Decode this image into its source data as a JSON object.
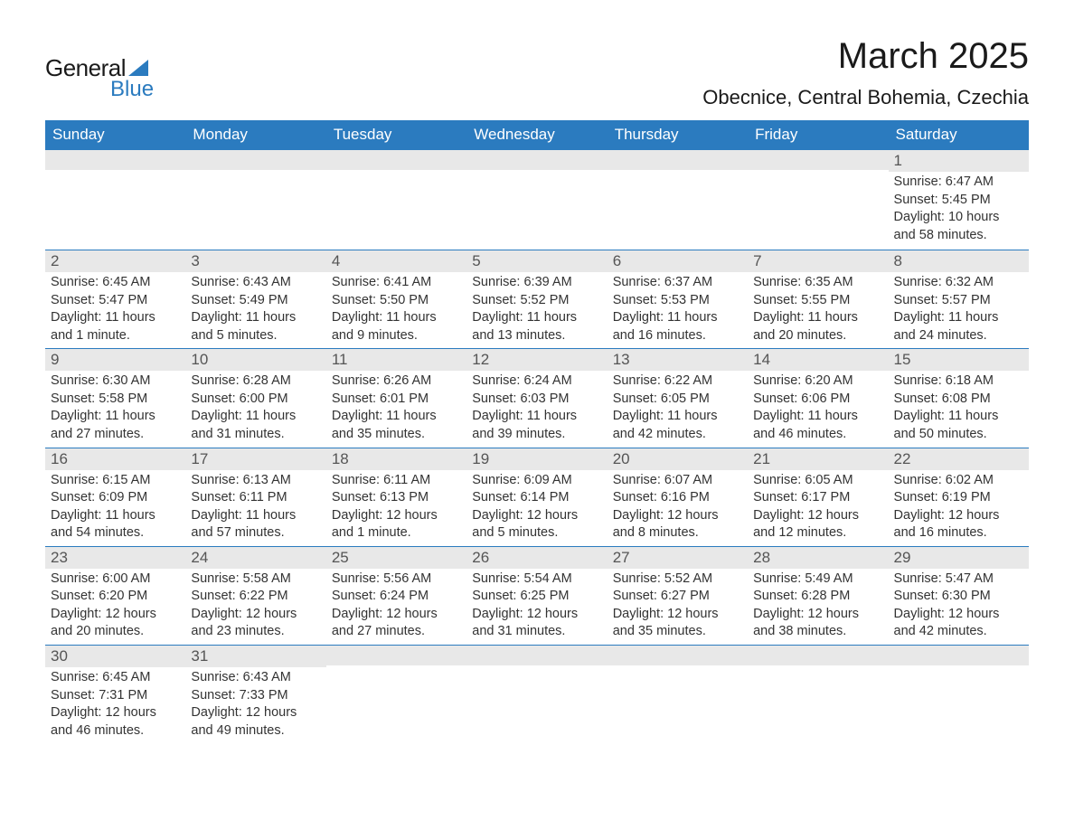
{
  "logo": {
    "text1": "General",
    "text2": "Blue"
  },
  "title": {
    "month": "March 2025",
    "location": "Obecnice, Central Bohemia, Czechia"
  },
  "colors": {
    "header_bg": "#2b7bbf",
    "header_text": "#ffffff",
    "daynum_bg": "#e8e8e8",
    "daynum_text": "#555555",
    "body_text": "#333333",
    "row_border": "#2b7bbf",
    "page_bg": "#ffffff",
    "logo_accent": "#2b7bbf"
  },
  "weekdays": [
    "Sunday",
    "Monday",
    "Tuesday",
    "Wednesday",
    "Thursday",
    "Friday",
    "Saturday"
  ],
  "weeks": [
    [
      {
        "blank": true
      },
      {
        "blank": true
      },
      {
        "blank": true
      },
      {
        "blank": true
      },
      {
        "blank": true
      },
      {
        "blank": true
      },
      {
        "day": "1",
        "sunrise": "Sunrise: 6:47 AM",
        "sunset": "Sunset: 5:45 PM",
        "daylight1": "Daylight: 10 hours",
        "daylight2": "and 58 minutes."
      }
    ],
    [
      {
        "day": "2",
        "sunrise": "Sunrise: 6:45 AM",
        "sunset": "Sunset: 5:47 PM",
        "daylight1": "Daylight: 11 hours",
        "daylight2": "and 1 minute."
      },
      {
        "day": "3",
        "sunrise": "Sunrise: 6:43 AM",
        "sunset": "Sunset: 5:49 PM",
        "daylight1": "Daylight: 11 hours",
        "daylight2": "and 5 minutes."
      },
      {
        "day": "4",
        "sunrise": "Sunrise: 6:41 AM",
        "sunset": "Sunset: 5:50 PM",
        "daylight1": "Daylight: 11 hours",
        "daylight2": "and 9 minutes."
      },
      {
        "day": "5",
        "sunrise": "Sunrise: 6:39 AM",
        "sunset": "Sunset: 5:52 PM",
        "daylight1": "Daylight: 11 hours",
        "daylight2": "and 13 minutes."
      },
      {
        "day": "6",
        "sunrise": "Sunrise: 6:37 AM",
        "sunset": "Sunset: 5:53 PM",
        "daylight1": "Daylight: 11 hours",
        "daylight2": "and 16 minutes."
      },
      {
        "day": "7",
        "sunrise": "Sunrise: 6:35 AM",
        "sunset": "Sunset: 5:55 PM",
        "daylight1": "Daylight: 11 hours",
        "daylight2": "and 20 minutes."
      },
      {
        "day": "8",
        "sunrise": "Sunrise: 6:32 AM",
        "sunset": "Sunset: 5:57 PM",
        "daylight1": "Daylight: 11 hours",
        "daylight2": "and 24 minutes."
      }
    ],
    [
      {
        "day": "9",
        "sunrise": "Sunrise: 6:30 AM",
        "sunset": "Sunset: 5:58 PM",
        "daylight1": "Daylight: 11 hours",
        "daylight2": "and 27 minutes."
      },
      {
        "day": "10",
        "sunrise": "Sunrise: 6:28 AM",
        "sunset": "Sunset: 6:00 PM",
        "daylight1": "Daylight: 11 hours",
        "daylight2": "and 31 minutes."
      },
      {
        "day": "11",
        "sunrise": "Sunrise: 6:26 AM",
        "sunset": "Sunset: 6:01 PM",
        "daylight1": "Daylight: 11 hours",
        "daylight2": "and 35 minutes."
      },
      {
        "day": "12",
        "sunrise": "Sunrise: 6:24 AM",
        "sunset": "Sunset: 6:03 PM",
        "daylight1": "Daylight: 11 hours",
        "daylight2": "and 39 minutes."
      },
      {
        "day": "13",
        "sunrise": "Sunrise: 6:22 AM",
        "sunset": "Sunset: 6:05 PM",
        "daylight1": "Daylight: 11 hours",
        "daylight2": "and 42 minutes."
      },
      {
        "day": "14",
        "sunrise": "Sunrise: 6:20 AM",
        "sunset": "Sunset: 6:06 PM",
        "daylight1": "Daylight: 11 hours",
        "daylight2": "and 46 minutes."
      },
      {
        "day": "15",
        "sunrise": "Sunrise: 6:18 AM",
        "sunset": "Sunset: 6:08 PM",
        "daylight1": "Daylight: 11 hours",
        "daylight2": "and 50 minutes."
      }
    ],
    [
      {
        "day": "16",
        "sunrise": "Sunrise: 6:15 AM",
        "sunset": "Sunset: 6:09 PM",
        "daylight1": "Daylight: 11 hours",
        "daylight2": "and 54 minutes."
      },
      {
        "day": "17",
        "sunrise": "Sunrise: 6:13 AM",
        "sunset": "Sunset: 6:11 PM",
        "daylight1": "Daylight: 11 hours",
        "daylight2": "and 57 minutes."
      },
      {
        "day": "18",
        "sunrise": "Sunrise: 6:11 AM",
        "sunset": "Sunset: 6:13 PM",
        "daylight1": "Daylight: 12 hours",
        "daylight2": "and 1 minute."
      },
      {
        "day": "19",
        "sunrise": "Sunrise: 6:09 AM",
        "sunset": "Sunset: 6:14 PM",
        "daylight1": "Daylight: 12 hours",
        "daylight2": "and 5 minutes."
      },
      {
        "day": "20",
        "sunrise": "Sunrise: 6:07 AM",
        "sunset": "Sunset: 6:16 PM",
        "daylight1": "Daylight: 12 hours",
        "daylight2": "and 8 minutes."
      },
      {
        "day": "21",
        "sunrise": "Sunrise: 6:05 AM",
        "sunset": "Sunset: 6:17 PM",
        "daylight1": "Daylight: 12 hours",
        "daylight2": "and 12 minutes."
      },
      {
        "day": "22",
        "sunrise": "Sunrise: 6:02 AM",
        "sunset": "Sunset: 6:19 PM",
        "daylight1": "Daylight: 12 hours",
        "daylight2": "and 16 minutes."
      }
    ],
    [
      {
        "day": "23",
        "sunrise": "Sunrise: 6:00 AM",
        "sunset": "Sunset: 6:20 PM",
        "daylight1": "Daylight: 12 hours",
        "daylight2": "and 20 minutes."
      },
      {
        "day": "24",
        "sunrise": "Sunrise: 5:58 AM",
        "sunset": "Sunset: 6:22 PM",
        "daylight1": "Daylight: 12 hours",
        "daylight2": "and 23 minutes."
      },
      {
        "day": "25",
        "sunrise": "Sunrise: 5:56 AM",
        "sunset": "Sunset: 6:24 PM",
        "daylight1": "Daylight: 12 hours",
        "daylight2": "and 27 minutes."
      },
      {
        "day": "26",
        "sunrise": "Sunrise: 5:54 AM",
        "sunset": "Sunset: 6:25 PM",
        "daylight1": "Daylight: 12 hours",
        "daylight2": "and 31 minutes."
      },
      {
        "day": "27",
        "sunrise": "Sunrise: 5:52 AM",
        "sunset": "Sunset: 6:27 PM",
        "daylight1": "Daylight: 12 hours",
        "daylight2": "and 35 minutes."
      },
      {
        "day": "28",
        "sunrise": "Sunrise: 5:49 AM",
        "sunset": "Sunset: 6:28 PM",
        "daylight1": "Daylight: 12 hours",
        "daylight2": "and 38 minutes."
      },
      {
        "day": "29",
        "sunrise": "Sunrise: 5:47 AM",
        "sunset": "Sunset: 6:30 PM",
        "daylight1": "Daylight: 12 hours",
        "daylight2": "and 42 minutes."
      }
    ],
    [
      {
        "day": "30",
        "sunrise": "Sunrise: 6:45 AM",
        "sunset": "Sunset: 7:31 PM",
        "daylight1": "Daylight: 12 hours",
        "daylight2": "and 46 minutes."
      },
      {
        "day": "31",
        "sunrise": "Sunrise: 6:43 AM",
        "sunset": "Sunset: 7:33 PM",
        "daylight1": "Daylight: 12 hours",
        "daylight2": "and 49 minutes."
      },
      {
        "blank": true
      },
      {
        "blank": true
      },
      {
        "blank": true
      },
      {
        "blank": true
      },
      {
        "blank": true
      }
    ]
  ]
}
